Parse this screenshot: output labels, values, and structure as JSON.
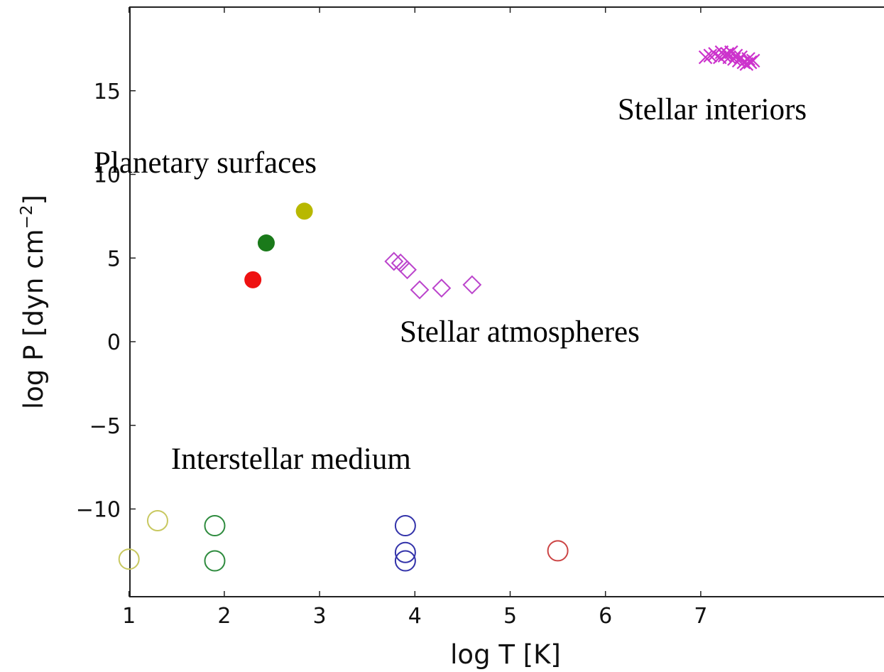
{
  "chart_data": {
    "type": "scatter",
    "xlabel": "log T [K]",
    "ylabel_main": "log P [dyn cm",
    "ylabel_exp": "−2",
    "ylabel_close": "]",
    "xlim": [
      0,
      8
    ],
    "ylim": [
      -15,
      20
    ],
    "xticks": [
      1,
      2,
      3,
      4,
      5,
      6,
      7
    ],
    "yticks": [
      -10,
      -5,
      0,
      5,
      10,
      15
    ],
    "xtick_labels": [
      "1",
      "2",
      "3",
      "4",
      "5",
      "6",
      "7"
    ],
    "ytick_labels": [
      "−10",
      "−5",
      "0",
      "5",
      "10",
      "15"
    ],
    "grid": false,
    "annotations": [
      {
        "key": "interiors",
        "text": "Stellar interiors",
        "x": 7.12,
        "y": 13.3
      },
      {
        "key": "planetary",
        "text": "Planetary surfaces",
        "x": 1.8,
        "y": 10.1
      },
      {
        "key": "atmospheres",
        "text": "Stellar atmospheres",
        "x": 5.1,
        "y": 0.0
      },
      {
        "key": "ism",
        "text": "Interstellar medium",
        "x": 2.7,
        "y": -7.6
      }
    ],
    "series": [
      {
        "marker": "filled-circle",
        "color": "#ee1111",
        "points": [
          [
            2.3,
            3.7
          ]
        ]
      },
      {
        "marker": "filled-circle",
        "color": "#1a7a1a",
        "points": [
          [
            2.44,
            5.9
          ]
        ]
      },
      {
        "marker": "filled-circle",
        "color": "#b8b800",
        "points": [
          [
            2.84,
            7.8
          ]
        ]
      },
      {
        "marker": "open-diamond",
        "color": "#bb44cc",
        "points": [
          [
            3.78,
            4.8
          ],
          [
            3.85,
            4.7
          ],
          [
            3.92,
            4.3
          ],
          [
            4.05,
            3.1
          ],
          [
            4.28,
            3.2
          ],
          [
            4.6,
            3.4
          ]
        ]
      },
      {
        "marker": "x",
        "color": "#cc33cc",
        "points": [
          [
            7.05,
            17.0
          ],
          [
            7.1,
            17.1
          ],
          [
            7.15,
            17.2
          ],
          [
            7.2,
            17.0
          ],
          [
            7.22,
            17.3
          ],
          [
            7.25,
            17.1
          ],
          [
            7.28,
            17.2
          ],
          [
            7.3,
            17.0
          ],
          [
            7.32,
            17.3
          ],
          [
            7.35,
            16.9
          ],
          [
            7.37,
            17.1
          ],
          [
            7.4,
            16.8
          ],
          [
            7.42,
            17.0
          ],
          [
            7.45,
            16.7
          ],
          [
            7.48,
            16.6
          ],
          [
            7.5,
            16.9
          ],
          [
            7.52,
            16.7
          ],
          [
            7.55,
            16.8
          ]
        ]
      },
      {
        "marker": "open-circle",
        "color": "#c8c860",
        "points": [
          [
            1.0,
            -13.0
          ],
          [
            1.3,
            -10.7
          ]
        ]
      },
      {
        "marker": "open-circle",
        "color": "#2e8b3e",
        "points": [
          [
            1.9,
            -11.0
          ],
          [
            1.9,
            -13.1
          ]
        ]
      },
      {
        "marker": "open-circle",
        "color": "#3333aa",
        "points": [
          [
            3.9,
            -11.0
          ],
          [
            3.9,
            -12.6
          ],
          [
            3.9,
            -13.1
          ]
        ]
      },
      {
        "marker": "open-circle",
        "color": "#cc4444",
        "points": [
          [
            5.5,
            -12.5
          ]
        ]
      }
    ]
  }
}
